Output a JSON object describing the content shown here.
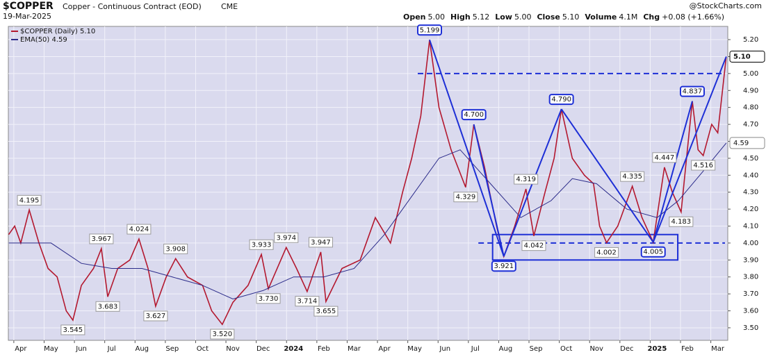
{
  "header": {
    "symbol": "$COPPER",
    "name": "Copper - Continuous Contract (EOD)",
    "exchange": "CME",
    "date": "19-Mar-2025",
    "source": "@StockCharts.com",
    "quote": [
      {
        "label": "Open",
        "value": "5.00"
      },
      {
        "label": "High",
        "value": "5.12"
      },
      {
        "label": "Low",
        "value": "5.00"
      },
      {
        "label": "Close",
        "value": "5.10"
      },
      {
        "label": "Volume",
        "value": "4.1M"
      },
      {
        "label": "Chg",
        "value": "+0.08 (+1.66%)"
      }
    ]
  },
  "chart_data": {
    "type": "line",
    "xlim": [
      -0.41,
      23.33
    ],
    "ylim": [
      3.426,
      5.278
    ],
    "xticks": [
      {
        "value": 0,
        "label": "Apr"
      },
      {
        "value": 1,
        "label": "May"
      },
      {
        "value": 2,
        "label": "Jun"
      },
      {
        "value": 3,
        "label": "Jul"
      },
      {
        "value": 4,
        "label": "Aug"
      },
      {
        "value": 5,
        "label": "Sep"
      },
      {
        "value": 6,
        "label": "Oct"
      },
      {
        "value": 7,
        "label": "Nov"
      },
      {
        "value": 8,
        "label": "Dec"
      },
      {
        "value": 9,
        "label": "2024"
      },
      {
        "value": 10,
        "label": "Feb"
      },
      {
        "value": 11,
        "label": "Mar"
      },
      {
        "value": 12,
        "label": "Apr"
      },
      {
        "value": 13,
        "label": "May"
      },
      {
        "value": 14,
        "label": "Jun"
      },
      {
        "value": 15,
        "label": "Jul"
      },
      {
        "value": 16,
        "label": "Aug"
      },
      {
        "value": 17,
        "label": "Sep"
      },
      {
        "value": 18,
        "label": "Oct"
      },
      {
        "value": 19,
        "label": "Nov"
      },
      {
        "value": 20,
        "label": "Dec"
      },
      {
        "value": 21,
        "label": "2025"
      },
      {
        "value": 22,
        "label": "Feb"
      },
      {
        "value": 23,
        "label": "Mar"
      }
    ],
    "yticks": [
      {
        "value": 3.5,
        "label": "3.50"
      },
      {
        "value": 3.6,
        "label": "3.60"
      },
      {
        "value": 3.7,
        "label": "3.70"
      },
      {
        "value": 3.8,
        "label": "3.80"
      },
      {
        "value": 3.9,
        "label": "3.90"
      },
      {
        "value": 4,
        "label": "4.00"
      },
      {
        "value": 4.1,
        "label": "4.10"
      },
      {
        "value": 4.2,
        "label": "4.20"
      },
      {
        "value": 4.3,
        "label": "4.30"
      },
      {
        "value": 4.4,
        "label": "4.40"
      },
      {
        "value": 4.5,
        "label": "4.50"
      },
      {
        "value": 4.6,
        "label": "4.60"
      },
      {
        "value": 4.7,
        "label": "4.70"
      },
      {
        "value": 4.8,
        "label": "4.80"
      },
      {
        "value": 4.9,
        "label": "4.90"
      },
      {
        "value": 5,
        "label": "5.00"
      },
      {
        "value": 5.1,
        "label": "5.10"
      },
      {
        "value": 5.2,
        "label": "5.20"
      }
    ],
    "grid": true,
    "series": [
      {
        "name": "$COPPER (Daily) 5.10",
        "color": "#b3182f",
        "x": [
          -0.4,
          -0.2,
          0,
          0.28,
          0.6,
          0.9,
          1.2,
          1.5,
          1.72,
          2.0,
          2.4,
          2.66,
          2.87,
          3.2,
          3.6,
          3.9,
          4.2,
          4.45,
          4.8,
          5.11,
          5.5,
          6.0,
          6.3,
          6.65,
          7.0,
          7.5,
          7.94,
          8.17,
          8.76,
          9.1,
          9.45,
          9.9,
          10.07,
          10.6,
          11.2,
          11.7,
          12.2,
          12.6,
          12.9,
          13.2,
          13.49,
          13.8,
          14.2,
          14.68,
          14.95,
          15.3,
          15.7,
          15.94,
          16.3,
          16.67,
          16.93,
          17.3,
          17.6,
          17.84,
          18.2,
          18.6,
          18.9,
          19.1,
          19.33,
          19.7,
          20.18,
          20.5,
          20.87,
          21.24,
          21.5,
          21.79,
          22.16,
          22.35,
          22.52,
          22.8,
          23.0,
          23.28
        ],
        "values": [
          4.05,
          4.1,
          4.0,
          4.195,
          4.0,
          3.85,
          3.8,
          3.6,
          3.545,
          3.75,
          3.85,
          3.967,
          3.683,
          3.85,
          3.9,
          4.024,
          3.85,
          3.627,
          3.8,
          3.908,
          3.8,
          3.75,
          3.6,
          3.52,
          3.65,
          3.75,
          3.933,
          3.73,
          3.974,
          3.85,
          3.714,
          3.947,
          3.655,
          3.85,
          3.9,
          4.15,
          4.0,
          4.3,
          4.5,
          4.75,
          5.199,
          4.8,
          4.55,
          4.329,
          4.7,
          4.45,
          4.1,
          3.921,
          4.1,
          4.319,
          4.042,
          4.3,
          4.5,
          4.79,
          4.5,
          4.4,
          4.35,
          4.1,
          4.002,
          4.1,
          4.335,
          4.15,
          4.005,
          4.447,
          4.3,
          4.183,
          4.837,
          4.55,
          4.516,
          4.7,
          4.65,
          5.1
        ],
        "value_labels": [
          null,
          null,
          null,
          "4.195",
          null,
          null,
          null,
          null,
          "3.545",
          null,
          null,
          "3.967",
          "3.683",
          null,
          null,
          "4.024",
          null,
          "3.627",
          null,
          "3.908",
          null,
          null,
          null,
          "3.520",
          null,
          null,
          "3.933",
          "3.730",
          "3.974",
          null,
          "3.714",
          "3.947",
          "3.655",
          null,
          null,
          null,
          null,
          null,
          null,
          null,
          "5.199",
          null,
          null,
          "4.329",
          "4.700",
          null,
          null,
          "3.921",
          null,
          "4.319",
          "4.042",
          null,
          null,
          "4.790",
          null,
          null,
          null,
          null,
          "4.002",
          null,
          "4.335",
          null,
          "4.005",
          "4.447",
          null,
          "4.183",
          "4.837",
          null,
          "4.516",
          null,
          null,
          "5.10"
        ]
      },
      {
        "name": "EMA(50) 4.59",
        "color": "#2b2b8a",
        "x": [
          -0.4,
          1,
          2,
          3,
          4,
          5,
          6,
          7,
          8,
          9,
          10,
          11,
          12,
          13,
          13.8,
          14.5,
          15.5,
          16.5,
          17.5,
          18.2,
          19,
          20,
          21,
          21.7,
          22.5,
          23.28
        ],
        "values": [
          4.0,
          4.0,
          3.88,
          3.85,
          3.85,
          3.8,
          3.75,
          3.67,
          3.72,
          3.8,
          3.8,
          3.85,
          4.05,
          4.3,
          4.5,
          4.55,
          4.35,
          4.15,
          4.25,
          4.38,
          4.35,
          4.2,
          4.15,
          4.25,
          4.42,
          4.59
        ],
        "value_labels": [
          null,
          null,
          null,
          null,
          null,
          null,
          null,
          null,
          null,
          null,
          null,
          null,
          null,
          null,
          null,
          null,
          null,
          null,
          null,
          null,
          null,
          null,
          null,
          null,
          null,
          "4.59"
        ]
      }
    ],
    "hlines": [
      5.0,
      4.0
    ],
    "box": {
      "x": [
        15.57,
        21.68
      ],
      "y": [
        3.9,
        4.05
      ]
    },
    "trendlines": [
      [
        [
          13.49,
          5.199
        ],
        [
          15.94,
          3.921
        ]
      ],
      [
        [
          14.95,
          4.7
        ],
        [
          15.94,
          3.921
        ]
      ],
      [
        [
          15.94,
          3.921
        ],
        [
          17.84,
          4.79
        ]
      ],
      [
        [
          17.84,
          4.79
        ],
        [
          20.87,
          4.005
        ]
      ],
      [
        [
          20.87,
          4.005
        ],
        [
          22.16,
          4.837
        ]
      ],
      [
        [
          20.87,
          4.005
        ],
        [
          23.28,
          5.1
        ]
      ]
    ]
  }
}
